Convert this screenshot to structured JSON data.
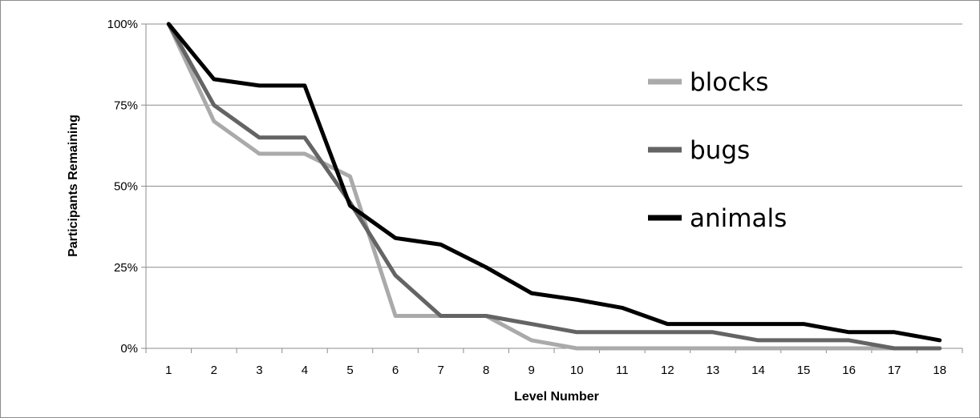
{
  "chart_data": {
    "type": "line",
    "title": "",
    "xlabel": "Level Number",
    "ylabel": "Participants  Remaining",
    "x": [
      1,
      2,
      3,
      4,
      5,
      6,
      7,
      8,
      9,
      10,
      11,
      12,
      13,
      14,
      15,
      16,
      17,
      18
    ],
    "x_tick_labels": [
      "1",
      "2",
      "3",
      "4",
      "5",
      "6",
      "7",
      "8",
      "9",
      "10",
      "11",
      "12",
      "13",
      "14",
      "15",
      "16",
      "17",
      "18"
    ],
    "y_ticks": [
      0,
      25,
      50,
      75,
      100
    ],
    "y_tick_labels": [
      "0%",
      "25%",
      "50%",
      "75%",
      "100%"
    ],
    "ylim": [
      0,
      100
    ],
    "grid": true,
    "legend_position": "top-right",
    "series": [
      {
        "name": "blocks",
        "color": "#aaaaaa",
        "values": [
          100,
          70,
          60,
          60,
          53,
          10,
          10,
          10,
          2.5,
          0,
          0,
          0,
          0,
          0,
          0,
          0,
          0,
          0
        ]
      },
      {
        "name": "bugs",
        "color": "#646464",
        "values": [
          100,
          75,
          65,
          65,
          45,
          22.5,
          10,
          10,
          7.5,
          5,
          5,
          5,
          5,
          2.5,
          2.5,
          2.5,
          0,
          0
        ]
      },
      {
        "name": "animals",
        "color": "#000000",
        "values": [
          100,
          83,
          81,
          81,
          44,
          34,
          32,
          25,
          17,
          15,
          12.5,
          7.5,
          7.5,
          7.5,
          7.5,
          5,
          5,
          2.5
        ]
      }
    ]
  }
}
